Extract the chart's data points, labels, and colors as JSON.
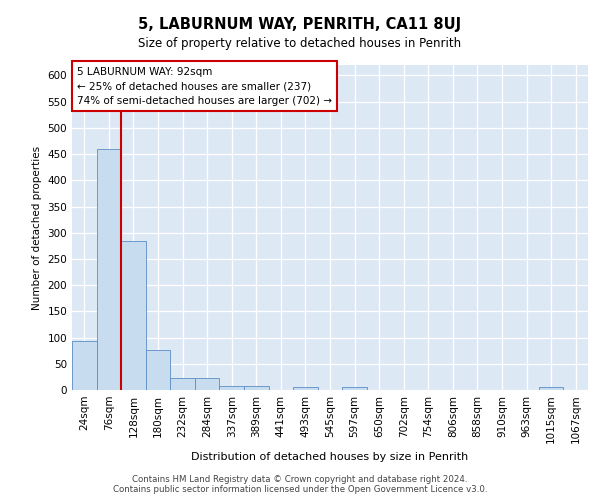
{
  "title": "5, LABURNUM WAY, PENRITH, CA11 8UJ",
  "subtitle": "Size of property relative to detached houses in Penrith",
  "xlabel": "Distribution of detached houses by size in Penrith",
  "ylabel": "Number of detached properties",
  "categories": [
    "24sqm",
    "76sqm",
    "128sqm",
    "180sqm",
    "232sqm",
    "284sqm",
    "337sqm",
    "389sqm",
    "441sqm",
    "493sqm",
    "545sqm",
    "597sqm",
    "650sqm",
    "702sqm",
    "754sqm",
    "806sqm",
    "858sqm",
    "910sqm",
    "963sqm",
    "1015sqm",
    "1067sqm"
  ],
  "values": [
    93,
    460,
    285,
    76,
    23,
    23,
    8,
    8,
    0,
    6,
    0,
    6,
    0,
    0,
    0,
    0,
    0,
    0,
    0,
    6,
    0
  ],
  "bar_color": "#c8dcf0",
  "bar_edge_color": "#5b8ec4",
  "vline_color": "#cc0000",
  "vline_position": 1.5,
  "annotation_text": "5 LABURNUM WAY: 92sqm\n← 25% of detached houses are smaller (237)\n74% of semi-detached houses are larger (702) →",
  "annotation_box_color": "#ffffff",
  "annotation_box_edge_color": "#cc0000",
  "ylim": [
    0,
    620
  ],
  "yticks": [
    0,
    50,
    100,
    150,
    200,
    250,
    300,
    350,
    400,
    450,
    500,
    550,
    600
  ],
  "background_color": "#dde8f5",
  "grid_color": "#ffffff",
  "footer_line1": "Contains HM Land Registry data © Crown copyright and database right 2024.",
  "footer_line2": "Contains public sector information licensed under the Open Government Licence v3.0."
}
